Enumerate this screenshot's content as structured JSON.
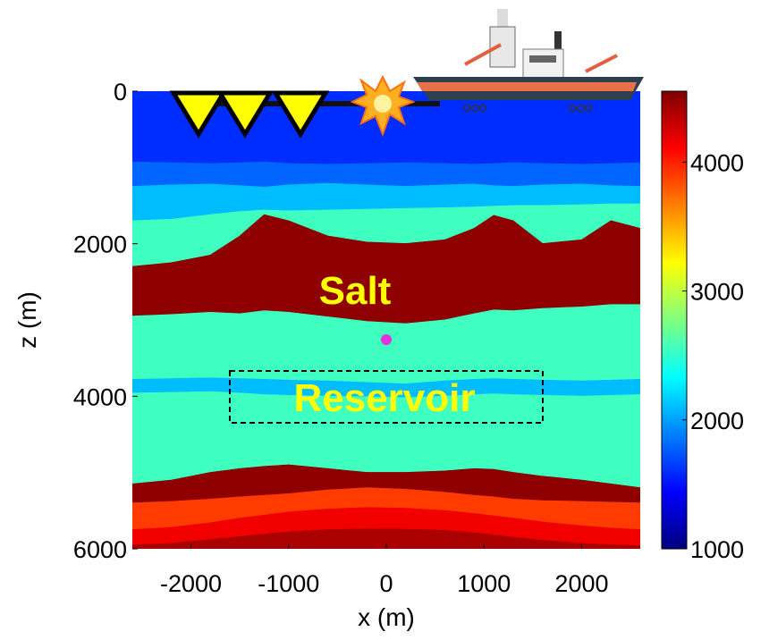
{
  "chart_data": {
    "type": "layered-model",
    "xlabel": "x (m)",
    "ylabel": "z (m)",
    "xlim": [
      -2600,
      2600
    ],
    "ylim": [
      0,
      6000
    ],
    "xticks": [
      -2000,
      -1000,
      0,
      1000,
      2000
    ],
    "yticks": [
      0,
      2000,
      4000,
      6000
    ],
    "y_inverted": true,
    "colormap": "jet",
    "clim": [
      1000,
      4550
    ],
    "cticks": [
      1000,
      2000,
      3000,
      4000
    ],
    "layer_x": [
      -2600,
      -2200,
      -1800,
      -1500,
      -1250,
      -1000,
      -600,
      -200,
      200,
      600,
      900,
      1100,
      1300,
      1600,
      2000,
      2300,
      2600
    ],
    "layers": [
      {
        "velocity": 1600,
        "top": [
          0,
          0,
          0,
          0,
          0,
          0,
          0,
          0,
          0,
          0,
          0,
          0,
          0,
          0,
          0,
          0,
          0
        ]
      },
      {
        "velocity": 1800,
        "top": [
          930,
          940,
          950,
          940,
          930,
          950,
          960,
          950,
          940,
          950,
          960,
          950,
          940,
          950,
          960,
          950,
          940
        ]
      },
      {
        "velocity": 2100,
        "top": [
          1250,
          1230,
          1220,
          1240,
          1260,
          1230,
          1210,
          1230,
          1250,
          1230,
          1220,
          1240,
          1250,
          1230,
          1220,
          1240,
          1250
        ]
      },
      {
        "velocity": 2550,
        "top": [
          1700,
          1680,
          1620,
          1580,
          1560,
          1570,
          1560,
          1550,
          1540,
          1530,
          1520,
          1510,
          1500,
          1500,
          1490,
          1480,
          1480
        ]
      },
      {
        "velocity": 4500,
        "top": [
          2300,
          2250,
          2150,
          1900,
          1620,
          1700,
          1900,
          1980,
          2000,
          1950,
          1800,
          1630,
          1700,
          2000,
          1950,
          1700,
          1800
        ]
      },
      {
        "velocity": 2550,
        "top": [
          2950,
          2930,
          2900,
          2920,
          2880,
          2900,
          2960,
          3020,
          3050,
          3000,
          2920,
          2870,
          2880,
          2850,
          2830,
          2800,
          2800
        ]
      },
      {
        "velocity": 2100,
        "top": [
          3780,
          3770,
          3760,
          3770,
          3780,
          3790,
          3800,
          3820,
          3840,
          3800,
          3780,
          3770,
          3780,
          3790,
          3800,
          3790,
          3780
        ]
      },
      {
        "velocity": 2550,
        "top": [
          3960,
          3950,
          3940,
          3960,
          3980,
          3990,
          4000,
          4010,
          4020,
          4000,
          3980,
          3970,
          3980,
          3990,
          4000,
          3990,
          3980
        ]
      },
      {
        "velocity": 4500,
        "top": [
          5150,
          5100,
          5000,
          4950,
          4920,
          4900,
          4950,
          5000,
          5000,
          4980,
          4950,
          4960,
          5000,
          5050,
          5100,
          5150,
          5200
        ]
      },
      {
        "velocity": 3900,
        "top": [
          5400,
          5380,
          5350,
          5320,
          5300,
          5280,
          5230,
          5200,
          5220,
          5260,
          5300,
          5320,
          5350,
          5370,
          5380,
          5390,
          5400
        ]
      },
      {
        "velocity": 4150,
        "top": [
          5750,
          5720,
          5660,
          5600,
          5560,
          5520,
          5480,
          5460,
          5470,
          5500,
          5540,
          5570,
          5600,
          5650,
          5700,
          5730,
          5750
        ]
      },
      {
        "velocity": 4400,
        "top": [
          5950,
          5930,
          5880,
          5840,
          5810,
          5780,
          5750,
          5740,
          5745,
          5760,
          5790,
          5820,
          5850,
          5890,
          5930,
          5950,
          5960
        ]
      }
    ],
    "annotations": [
      "Salt",
      "Reservoir"
    ]
  }
}
